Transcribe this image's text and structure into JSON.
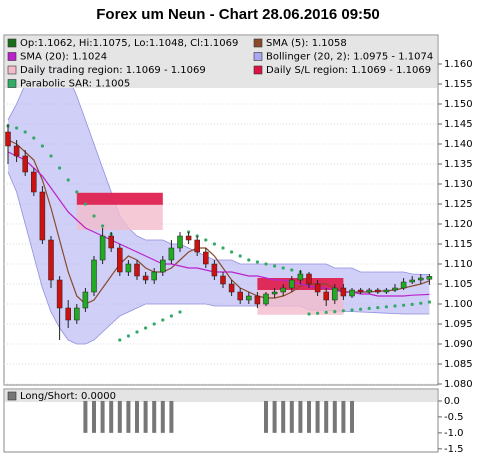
{
  "chart_data": [
    {
      "type": "candlestick",
      "title": "Forex um Neun - Chart 28.06.2016 09:50",
      "ylim": [
        1.07975,
        1.16725
      ],
      "yticks": [
        {
          "value": 1.08,
          "label": "1.080"
        },
        {
          "value": 1.085,
          "label": "1.085"
        },
        {
          "value": 1.09,
          "label": "1.090"
        },
        {
          "value": 1.095,
          "label": "1.095"
        },
        {
          "value": 1.1,
          "label": "1.100"
        },
        {
          "value": 1.105,
          "label": "1.105"
        },
        {
          "value": 1.11,
          "label": "1.110"
        },
        {
          "value": 1.115,
          "label": "1.115"
        },
        {
          "value": 1.12,
          "label": "1.120"
        },
        {
          "value": 1.125,
          "label": "1.125"
        },
        {
          "value": 1.13,
          "label": "1.130"
        },
        {
          "value": 1.135,
          "label": "1.135"
        },
        {
          "value": 1.14,
          "label": "1.140"
        },
        {
          "value": 1.145,
          "label": "1.145"
        },
        {
          "value": 1.15,
          "label": "1.150"
        },
        {
          "value": 1.155,
          "label": "1.155"
        },
        {
          "value": 1.16,
          "label": "1.160"
        }
      ],
      "grid": true,
      "ohlc": {
        "name": "Op:1.1062, Hi:1.1075, Lo:1.1048, Cl:1.1069",
        "color": "#1a6e1a",
        "up_color": "#22aa22",
        "down_color": "#cc1111",
        "open": [
          1.143,
          1.1395,
          1.137,
          1.133,
          1.128,
          1.116,
          1.106,
          1.099,
          1.096,
          1.099,
          1.103,
          1.111,
          1.117,
          1.114,
          1.108,
          1.11,
          1.107,
          1.106,
          1.108,
          1.111,
          1.114,
          1.117,
          1.116,
          1.113,
          1.11,
          1.107,
          1.105,
          1.103,
          1.101,
          1.102,
          1.1,
          1.1025,
          1.103,
          1.104,
          1.106,
          1.1075,
          1.105,
          1.103,
          1.101,
          1.104,
          1.102,
          1.1035,
          1.103,
          1.1035,
          1.103,
          1.1035,
          1.104,
          1.1055,
          1.106,
          1.1062
        ],
        "high": [
          1.145,
          1.141,
          1.1385,
          1.134,
          1.1295,
          1.117,
          1.107,
          1.101,
          1.1,
          1.104,
          1.112,
          1.119,
          1.118,
          1.115,
          1.111,
          1.111,
          1.108,
          1.109,
          1.112,
          1.116,
          1.118,
          1.118,
          1.117,
          1.114,
          1.111,
          1.108,
          1.106,
          1.104,
          1.103,
          1.103,
          1.103,
          1.104,
          1.105,
          1.107,
          1.1085,
          1.108,
          1.106,
          1.104,
          1.105,
          1.105,
          1.104,
          1.104,
          1.104,
          1.104,
          1.104,
          1.105,
          1.1065,
          1.107,
          1.1075,
          1.1075
        ],
        "low": [
          1.135,
          1.1355,
          1.132,
          1.127,
          1.115,
          1.104,
          1.091,
          1.094,
          1.095,
          1.098,
          1.102,
          1.11,
          1.113,
          1.107,
          1.107,
          1.106,
          1.105,
          1.105,
          1.107,
          1.11,
          1.113,
          1.115,
          1.112,
          1.109,
          1.106,
          1.104,
          1.102,
          1.1,
          1.1,
          1.099,
          1.0995,
          1.1015,
          1.102,
          1.103,
          1.105,
          1.104,
          1.102,
          1.0995,
          1.1,
          1.101,
          1.1015,
          1.1025,
          1.1025,
          1.1025,
          1.1025,
          1.103,
          1.1035,
          1.105,
          1.105,
          1.1048
        ],
        "close": [
          1.1395,
          1.137,
          1.133,
          1.128,
          1.116,
          1.106,
          1.099,
          1.096,
          1.099,
          1.103,
          1.111,
          1.117,
          1.114,
          1.108,
          1.11,
          1.107,
          1.106,
          1.108,
          1.111,
          1.114,
          1.117,
          1.116,
          1.113,
          1.11,
          1.107,
          1.105,
          1.103,
          1.101,
          1.102,
          1.1,
          1.1025,
          1.103,
          1.104,
          1.106,
          1.1075,
          1.105,
          1.103,
          1.101,
          1.104,
          1.102,
          1.1035,
          1.103,
          1.1035,
          1.103,
          1.1035,
          1.104,
          1.1055,
          1.106,
          1.1065,
          1.1069
        ]
      },
      "series": [
        {
          "name": "SMA (5): 1.1058",
          "color": "#8b4a2b",
          "values": [
            1.141,
            1.14,
            1.138,
            1.136,
            1.131,
            1.124,
            1.116,
            1.108,
            1.102,
            1.1,
            1.101,
            1.104,
            1.107,
            1.11,
            1.112,
            1.111,
            1.109,
            1.108,
            1.108,
            1.109,
            1.111,
            1.113,
            1.114,
            1.114,
            1.112,
            1.109,
            1.106,
            1.104,
            1.103,
            1.102,
            1.1015,
            1.1015,
            1.102,
            1.103,
            1.1045,
            1.105,
            1.105,
            1.105,
            1.104,
            1.103,
            1.103,
            1.103,
            1.103,
            1.1032,
            1.1033,
            1.1035,
            1.104,
            1.1045,
            1.105,
            1.1058
          ]
        },
        {
          "name": "SMA (20): 1.1024",
          "color": "#bb22cc",
          "values": [
            1.138,
            1.137,
            1.136,
            1.134,
            1.132,
            1.129,
            1.126,
            1.123,
            1.121,
            1.119,
            1.118,
            1.117,
            1.116,
            1.115,
            1.114,
            1.113,
            1.112,
            1.111,
            1.11,
            1.11,
            1.1095,
            1.109,
            1.109,
            1.1085,
            1.108,
            1.108,
            1.108,
            1.1075,
            1.107,
            1.107,
            1.1065,
            1.106,
            1.106,
            1.1055,
            1.105,
            1.1045,
            1.104,
            1.104,
            1.1035,
            1.103,
            1.103,
            1.1025,
            1.1025,
            1.102,
            1.102,
            1.102,
            1.102,
            1.1022,
            1.1023,
            1.1024
          ]
        },
        {
          "name": "Bollinger (20, 2): 1.0975 - 1.1074",
          "color": "#a8a8f0",
          "upper": [
            1.146,
            1.15,
            1.155,
            1.158,
            1.16,
            1.161,
            1.16,
            1.157,
            1.152,
            1.146,
            1.14,
            1.134,
            1.128,
            1.122,
            1.119,
            1.117,
            1.116,
            1.116,
            1.116,
            1.115,
            1.115,
            1.114,
            1.113,
            1.112,
            1.111,
            1.111,
            1.111,
            1.11,
            1.11,
            1.11,
            1.11,
            1.11,
            1.11,
            1.11,
            1.11,
            1.11,
            1.11,
            1.11,
            1.109,
            1.109,
            1.109,
            1.108,
            1.108,
            1.108,
            1.108,
            1.108,
            1.108,
            1.1075,
            1.1074,
            1.1074
          ],
          "lower": [
            1.133,
            1.128,
            1.12,
            1.112,
            1.104,
            1.098,
            1.094,
            1.091,
            1.09,
            1.09,
            1.091,
            1.093,
            1.095,
            1.097,
            1.098,
            1.099,
            1.1,
            1.1,
            1.1,
            1.1,
            1.1,
            1.1,
            1.1,
            1.1,
            1.0995,
            1.0995,
            1.0995,
            1.0995,
            1.0995,
            1.0995,
            1.0995,
            1.0995,
            1.0995,
            1.0995,
            1.0995,
            1.0985,
            1.0985,
            1.0984,
            1.0983,
            1.0982,
            1.0981,
            1.098,
            1.0979,
            1.0978,
            1.0977,
            1.0976,
            1.0975,
            1.0975,
            1.0975,
            1.0975
          ]
        },
        {
          "name": "Parabolic SAR: 1.1005",
          "color": "#33aa66",
          "style": "dots",
          "values": [
            1.1445,
            1.144,
            1.143,
            1.1415,
            1.1395,
            1.137,
            1.134,
            1.131,
            1.128,
            1.125,
            1.122,
            1.1195,
            1.1175,
            1.091,
            1.092,
            1.093,
            1.094,
            1.095,
            1.096,
            1.097,
            1.098,
            1.118,
            1.117,
            1.116,
            1.115,
            1.114,
            1.113,
            1.112,
            1.111,
            1.1105,
            1.11,
            1.1095,
            1.109,
            1.1085,
            1.108,
            1.0975,
            1.0977,
            1.0979,
            1.0981,
            1.0983,
            1.0985,
            1.0987,
            1.0989,
            1.0991,
            1.0993,
            1.0995,
            1.0997,
            1.0999,
            1.1002,
            1.1005
          ]
        }
      ],
      "regions": [
        {
          "name": "Daily trading region: 1.1069 - 1.1069",
          "color": "#f2bccb",
          "bands": [
            {
              "x": [
                8,
                18
              ],
              "y": [
                1.1185,
                1.1278
              ]
            },
            {
              "x": [
                29,
                39
              ],
              "y": [
                1.0973,
                1.1065
              ]
            }
          ]
        },
        {
          "name": "Daily S/L region: 1.1069 - 1.1069",
          "color": "#dd1144",
          "bands": [
            {
              "x": [
                8,
                18
              ],
              "y": [
                1.1248,
                1.1278
              ]
            },
            {
              "x": [
                29,
                39
              ],
              "y": [
                1.1035,
                1.1065
              ]
            }
          ]
        }
      ]
    },
    {
      "type": "bar",
      "title": "Long/Short: 0.0000",
      "color": "#777777",
      "ylim": [
        -1.6,
        0.375
      ],
      "yticks": [
        {
          "value": 0,
          "label": "0.0"
        },
        {
          "value": -0.5,
          "label": "-0.5"
        },
        {
          "value": -1,
          "label": "-1.0"
        },
        {
          "value": -1.5,
          "label": "-1.5"
        }
      ],
      "values": [
        0,
        0,
        0,
        0,
        0,
        0,
        0,
        0,
        0,
        -1,
        -1,
        -1,
        -1,
        -1,
        -1,
        -1,
        -1,
        -1,
        -1,
        -1,
        0,
        0,
        0,
        0,
        0,
        0,
        0,
        0,
        0,
        0,
        -1,
        -1,
        -1,
        -1,
        -1,
        -1,
        -1,
        -1,
        -1,
        -1,
        -1,
        0,
        0,
        0,
        0,
        0,
        0,
        0,
        0,
        0
      ]
    }
  ]
}
